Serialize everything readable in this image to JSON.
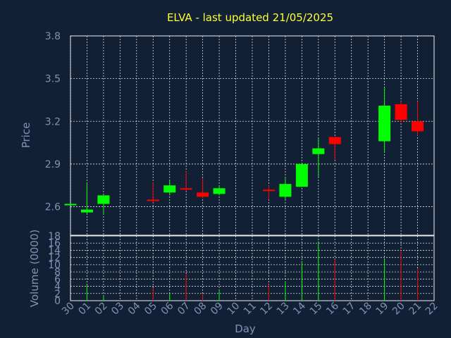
{
  "chart_data": [
    {
      "type": "candlestick",
      "title": "ELVA - last updated 21/05/2025",
      "xlabel": "",
      "ylabel": "Price",
      "ylim": [
        2.4,
        3.8
      ],
      "yticks": [
        2.6,
        2.9,
        3.2,
        3.5,
        3.8
      ],
      "ytick_labels": [
        "2.6",
        "2.9",
        "3.2",
        "3.5",
        "3.8"
      ],
      "grid": true,
      "colors": {
        "up": "#00ff00",
        "down": "#ff0000",
        "background": "#112034",
        "title": "#ffff33",
        "axis_text": "#7f93b5"
      },
      "candles": [
        {
          "day": "30",
          "open": 2.61,
          "close": 2.62,
          "high": 2.62,
          "low": 2.61
        },
        {
          "day": "01",
          "open": 2.56,
          "close": 2.58,
          "high": 2.77,
          "low": 2.55
        },
        {
          "day": "02",
          "open": 2.62,
          "close": 2.68,
          "high": 2.68,
          "low": 2.55
        },
        {
          "day": "05",
          "open": 2.65,
          "close": 2.64,
          "high": 2.77,
          "low": 2.63
        },
        {
          "day": "06",
          "open": 2.7,
          "close": 2.75,
          "high": 2.79,
          "low": 2.68
        },
        {
          "day": "07",
          "open": 2.73,
          "close": 2.72,
          "high": 2.85,
          "low": 2.71
        },
        {
          "day": "08",
          "open": 2.7,
          "close": 2.67,
          "high": 2.8,
          "low": 2.66
        },
        {
          "day": "09",
          "open": 2.69,
          "close": 2.73,
          "high": 2.75,
          "low": 2.68
        },
        {
          "day": "12",
          "open": 2.72,
          "close": 2.71,
          "high": 2.75,
          "low": 2.65
        },
        {
          "day": "13",
          "open": 2.67,
          "close": 2.76,
          "high": 2.8,
          "low": 2.65
        },
        {
          "day": "14",
          "open": 2.74,
          "close": 2.9,
          "high": 2.9,
          "low": 2.74
        },
        {
          "day": "15",
          "open": 2.97,
          "close": 3.01,
          "high": 3.08,
          "low": 2.81
        },
        {
          "day": "16",
          "open": 3.09,
          "close": 3.04,
          "high": 3.09,
          "low": 2.93
        },
        {
          "day": "19",
          "open": 3.06,
          "close": 3.31,
          "high": 3.44,
          "low": 2.98
        },
        {
          "day": "20",
          "open": 3.32,
          "close": 3.21,
          "high": 3.34,
          "low": 3.19
        },
        {
          "day": "21",
          "open": 3.2,
          "close": 3.13,
          "high": 3.34,
          "low": 3.1
        }
      ]
    },
    {
      "type": "bar",
      "xlabel": "Day",
      "ylabel": "Volume (0000)",
      "ylim": [
        0,
        18
      ],
      "yticks": [
        0,
        2,
        4,
        6,
        8,
        10,
        12,
        14,
        16,
        18
      ],
      "ytick_labels": [
        "0",
        "2",
        "4",
        "6",
        "8",
        "10",
        "12",
        "14",
        "16",
        "18"
      ],
      "grid": true,
      "categories": [
        "30",
        "01",
        "02",
        "03",
        "04",
        "05",
        "06",
        "07",
        "08",
        "09",
        "10",
        "11",
        "12",
        "13",
        "14",
        "15",
        "16",
        "17",
        "18",
        "19",
        "20",
        "21",
        "22"
      ],
      "volumes": [
        {
          "day": "01",
          "value": 4.5,
          "direction": "up"
        },
        {
          "day": "02",
          "value": 1.5,
          "direction": "up"
        },
        {
          "day": "05",
          "value": 3.5,
          "direction": "down"
        },
        {
          "day": "06",
          "value": 2.0,
          "direction": "up"
        },
        {
          "day": "07",
          "value": 7.5,
          "direction": "down"
        },
        {
          "day": "08",
          "value": 2.0,
          "direction": "down"
        },
        {
          "day": "09",
          "value": 3.0,
          "direction": "up"
        },
        {
          "day": "12",
          "value": 4.5,
          "direction": "down"
        },
        {
          "day": "13",
          "value": 5.5,
          "direction": "up"
        },
        {
          "day": "14",
          "value": 11.0,
          "direction": "up"
        },
        {
          "day": "15",
          "value": 16.5,
          "direction": "up"
        },
        {
          "day": "16",
          "value": 11.5,
          "direction": "down"
        },
        {
          "day": "19",
          "value": 11.5,
          "direction": "up"
        },
        {
          "day": "20",
          "value": 14.0,
          "direction": "down"
        },
        {
          "day": "21",
          "value": 9.0,
          "direction": "down"
        }
      ]
    }
  ]
}
